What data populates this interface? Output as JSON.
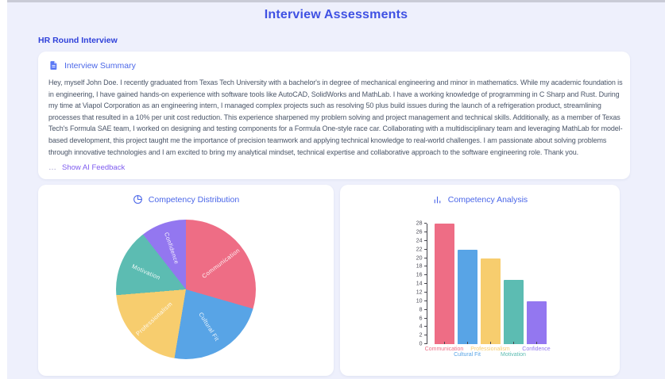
{
  "page": {
    "title": "Interview Assessments",
    "section_title": "HR Round Interview"
  },
  "summary_card": {
    "header": "Interview Summary",
    "body": "Hey, myself John Doe. I recently graduated from Texas Tech University with a bachelor's in degree of mechanical engineering and minor in mathematics. While my academic foundation is in engineering, I have gained hands-on experience with software tools like AutoCAD, SolidWorks and MathLab. I have a working knowledge of programming in C Sharp and Rust. During my time at Viapol Corporation as an engineering intern, I managed complex projects such as resolving 50 plus build issues during the launch of a refrigeration product, streamlining processes that resulted in a 10% per unit cost reduction. This experience sharpened my problem solving and project management and technical skills. Additionally, as a member of Texas Tech's Formula SAE team, I worked on designing and testing components for a Formula One-style race car. Collaborating with a multidisciplinary team and leveraging MathLab for model-based development, this project taught me the importance of precision teamwork and applying technical knowledge to real-world challenges. I am passionate about solving problems through innovative technologies and I am excited to bring my analytical mindset, technical expertise and collaborative approach to the software engineering role. Thank you.",
    "feedback_ellipsis": "…",
    "feedback_link": "Show AI Feedback"
  },
  "colors": {
    "accent_blue": "#4a66e8",
    "title_blue": "#3f51e3",
    "link_purple": "#7e5bef",
    "background": "#eef0fc"
  },
  "chart_data": [
    {
      "type": "pie",
      "title": "Competency Distribution",
      "categories": [
        "Communication",
        "Cultural Fit",
        "Professionalism",
        "Motivation",
        "Confidence"
      ],
      "values": [
        28,
        22,
        20,
        15,
        10
      ],
      "colors": [
        "#ee6d85",
        "#58a4e6",
        "#f7cd6e",
        "#5cbcb2",
        "#9377f0"
      ],
      "start_angle": "top",
      "direction": "clockwise",
      "labels_inside": true
    },
    {
      "type": "bar",
      "title": "Competency Analysis",
      "categories": [
        "Communication",
        "Cultural Fit",
        "Professionalism",
        "Motivation",
        "Confidence"
      ],
      "values": [
        28,
        22,
        20,
        15,
        10
      ],
      "colors": [
        "#ee6d85",
        "#58a4e6",
        "#f7cd6e",
        "#5cbcb2",
        "#9377f0"
      ],
      "xlabel": "",
      "ylabel": "",
      "ylim": [
        0,
        28
      ],
      "tick_step": 2,
      "grid": false,
      "legend": "none"
    }
  ]
}
